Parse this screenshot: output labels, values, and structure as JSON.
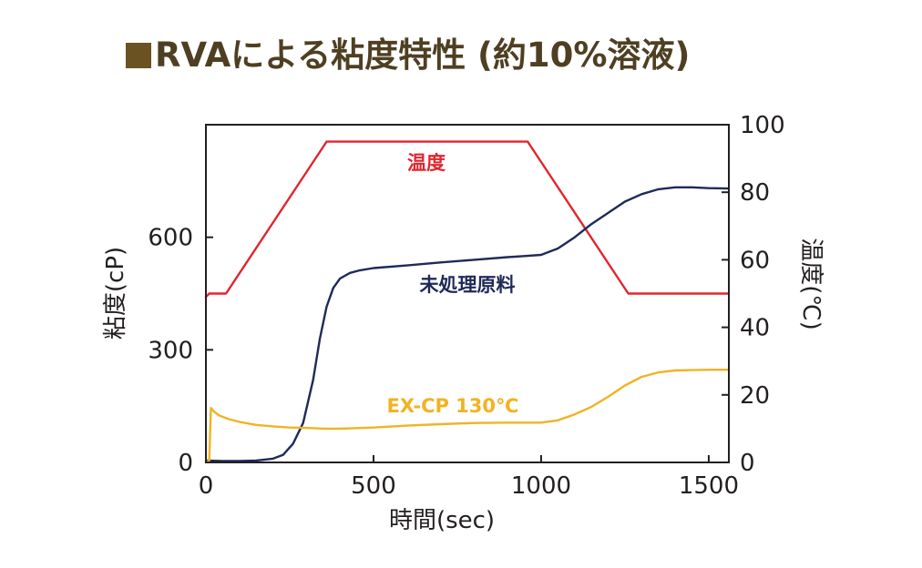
{
  "chart_data": {
    "type": "line",
    "title": "RVAによる粘度特性 (約10%溶液)",
    "xlabel": "時間(sec)",
    "ylabel": "粘度(cP)",
    "y2label": "温度(℃)",
    "xlim": [
      0,
      1560
    ],
    "ylim": [
      0,
      900
    ],
    "y2lim": [
      0,
      100
    ],
    "xticks": [
      0,
      500,
      1000,
      1500
    ],
    "yticks": [
      0,
      300,
      600
    ],
    "y2ticks": [
      0,
      20,
      40,
      60,
      80,
      100
    ],
    "grid": false,
    "series": [
      {
        "name": "温度",
        "axis": "right",
        "color": "#e0262e",
        "x": [
          0,
          10,
          30,
          60,
          360,
          960,
          1260,
          1560
        ],
        "y": [
          49,
          50,
          50,
          50,
          95,
          95,
          50,
          50
        ]
      },
      {
        "name": "未処理原料",
        "axis": "left",
        "color": "#1f2a57",
        "x": [
          0,
          50,
          100,
          150,
          200,
          230,
          260,
          290,
          320,
          340,
          360,
          380,
          400,
          430,
          460,
          500,
          600,
          700,
          800,
          900,
          950,
          1000,
          1050,
          1100,
          1150,
          1200,
          1250,
          1300,
          1350,
          1400,
          1450,
          1500,
          1560
        ],
        "y": [
          5,
          4,
          4,
          5,
          10,
          20,
          50,
          105,
          220,
          330,
          415,
          465,
          490,
          505,
          512,
          518,
          525,
          533,
          540,
          547,
          550,
          553,
          570,
          600,
          635,
          665,
          695,
          715,
          728,
          733,
          733,
          731,
          730
        ]
      },
      {
        "name": "EX-CP 130℃",
        "axis": "left",
        "color": "#f0b323",
        "x": [
          0,
          10,
          15,
          25,
          40,
          70,
          100,
          150,
          200,
          250,
          300,
          350,
          400,
          500,
          600,
          700,
          800,
          900,
          1000,
          1050,
          1100,
          1150,
          1200,
          1250,
          1300,
          1350,
          1400,
          1450,
          1500,
          1560
        ],
        "y": [
          0,
          5,
          145,
          135,
          125,
          115,
          108,
          100,
          96,
          93,
          92,
          90,
          90,
          93,
          98,
          102,
          105,
          106,
          106,
          112,
          128,
          148,
          175,
          205,
          228,
          240,
          245,
          246,
          247,
          247
        ]
      }
    ],
    "annotations": [
      {
        "text": "温度",
        "color": "#e0262e"
      },
      {
        "text": "未処理原料",
        "color": "#1f2a57"
      },
      {
        "text": "EX-CP 130℃",
        "color": "#f0b323"
      }
    ]
  }
}
